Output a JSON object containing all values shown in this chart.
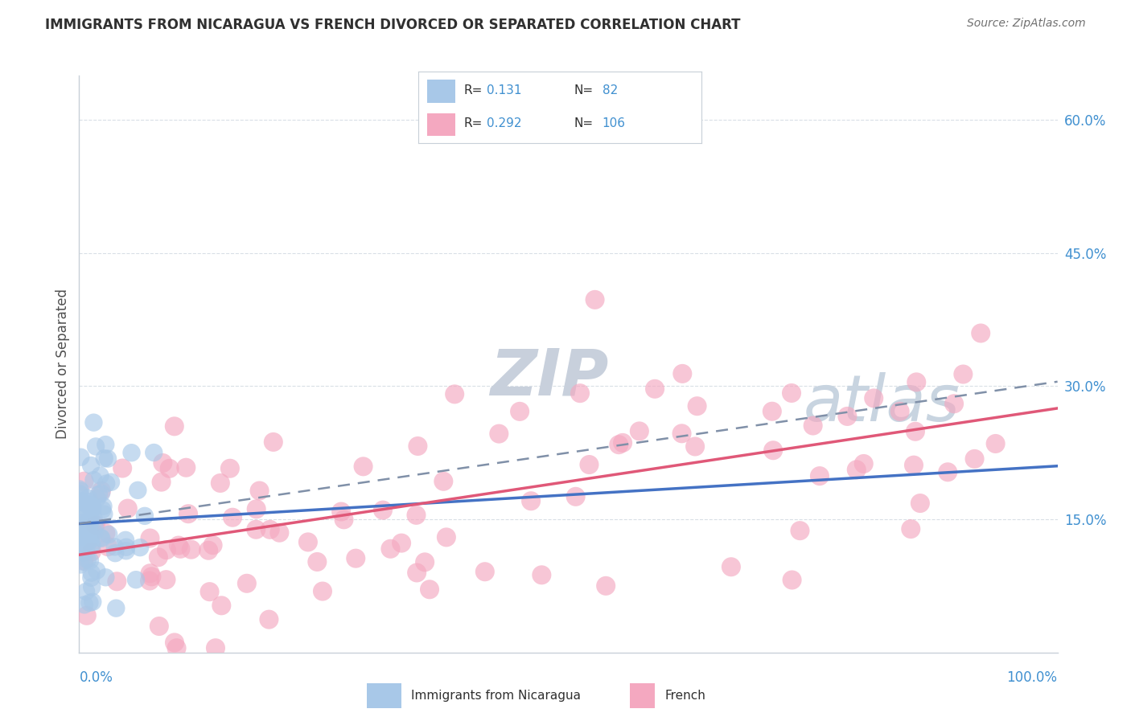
{
  "title": "IMMIGRANTS FROM NICARAGUA VS FRENCH DIVORCED OR SEPARATED CORRELATION CHART",
  "source": "Source: ZipAtlas.com",
  "ylabel": "Divorced or Separated",
  "ytick_vals": [
    15.0,
    30.0,
    45.0,
    60.0
  ],
  "ytick_labels": [
    "15.0%",
    "30.0%",
    "45.0%",
    "60.0%"
  ],
  "color_blue": "#a8c8e8",
  "color_pink": "#f4a8c0",
  "color_trend_blue_solid": "#4472c4",
  "color_trend_blue_dashed": "#8090a8",
  "color_trend_pink": "#e05878",
  "watermark_zip": "#c8d0dc",
  "watermark_atlas": "#c8d4e0",
  "xlim": [
    0,
    100
  ],
  "ylim": [
    0,
    65
  ],
  "trend_blue_solid": [
    14.5,
    21.0
  ],
  "trend_blue_dashed": [
    14.5,
    30.5
  ],
  "trend_pink": [
    11.0,
    27.5
  ],
  "background_color": "#ffffff",
  "grid_color": "#d0d8e0",
  "title_color": "#303030",
  "source_color": "#707070",
  "legend_r1": "R=  0.131",
  "legend_n1": "N=  82",
  "legend_r2": "R= 0.292",
  "legend_n2": "N= 106"
}
